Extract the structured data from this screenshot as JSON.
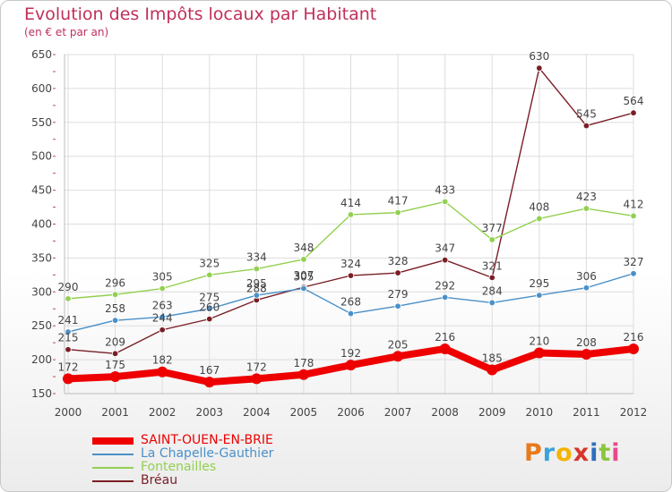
{
  "title": "Evolution des Impôts locaux par Habitant",
  "subtitle": "(en € et par an)",
  "logo": {
    "letters": [
      "P",
      "r",
      "o",
      "x",
      "i",
      "t",
      "i"
    ],
    "colors": [
      "#e87a1e",
      "#3aa3d8",
      "#f4b400",
      "#d9342b",
      "#2d6fbf",
      "#8cc63f",
      "#e84a8a"
    ]
  },
  "chart_data": {
    "type": "line",
    "x": [
      "2000",
      "2001",
      "2002",
      "2003",
      "2004",
      "2005",
      "2006",
      "2007",
      "2008",
      "2009",
      "2010",
      "2011",
      "2012"
    ],
    "ylim": [
      150,
      650
    ],
    "yticks": [
      "150",
      "200",
      "250",
      "300",
      "350",
      "400",
      "450",
      "500",
      "550",
      "600",
      "650"
    ],
    "grid": true,
    "legend_position": "bottom-left",
    "series": [
      {
        "name": "Bréau",
        "color": "#7a1e26",
        "values": [
          215,
          209,
          244,
          260,
          288,
          307,
          324,
          328,
          347,
          321,
          630,
          545,
          564
        ]
      },
      {
        "name": "Fontenailles",
        "color": "#92d050",
        "values": [
          290,
          296,
          305,
          325,
          334,
          348,
          414,
          417,
          433,
          377,
          408,
          423,
          412
        ]
      },
      {
        "name": "La Chapelle-Gauthier",
        "color": "#4a90c8",
        "values": [
          241,
          258,
          263,
          275,
          295,
          305,
          268,
          279,
          292,
          284,
          295,
          306,
          327
        ]
      },
      {
        "name": "SAINT-OUEN-EN-BRIE",
        "color": "#ee0000",
        "values": [
          172,
          175,
          182,
          167,
          172,
          178,
          192,
          205,
          216,
          185,
          210,
          208,
          216
        ]
      }
    ],
    "legend": [
      "SAINT-OUEN-EN-BRIE",
      "La Chapelle-Gauthier",
      "Fontenailles",
      "Bréau"
    ]
  }
}
